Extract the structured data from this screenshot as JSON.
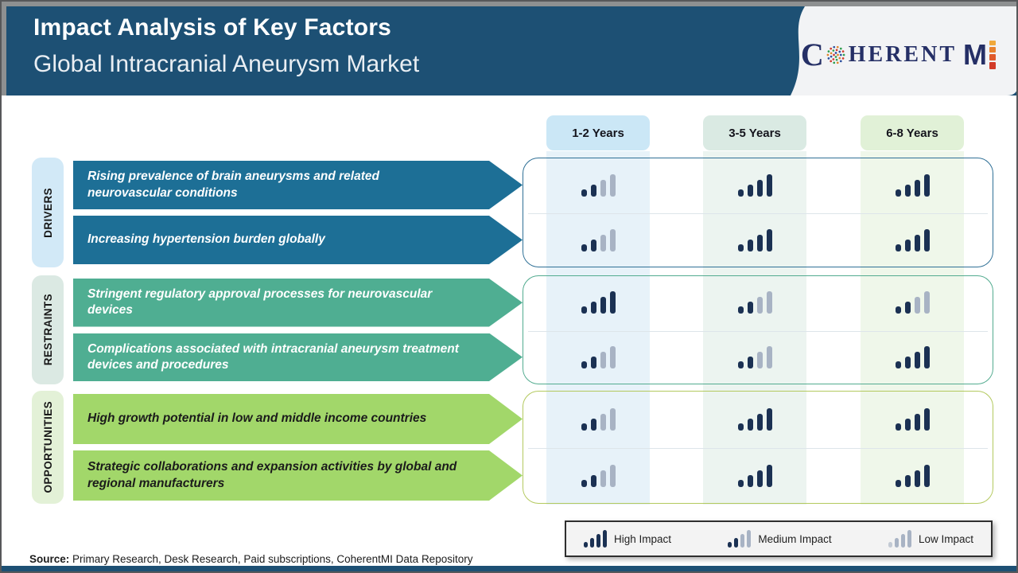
{
  "header": {
    "title": "Impact Analysis of Key Factors",
    "subtitle": "Global Intracranial Aneurysm Market",
    "logo": {
      "c": "C",
      "herent": "HERENT",
      "m": "M"
    }
  },
  "columns": [
    {
      "label": "1-2 Years",
      "tab_bg": "#cbe7f6",
      "band_bg": "#e7f2f9"
    },
    {
      "label": "3-5 Years",
      "tab_bg": "#daeae3",
      "band_bg": "#ecf4f0"
    },
    {
      "label": "6-8 Years",
      "tab_bg": "#e1f1d7",
      "band_bg": "#eff7ea"
    }
  ],
  "groups": [
    {
      "key": "drivers",
      "label": "DRIVERS",
      "rows": [
        {
          "text": "Rising prevalence of brain aneurysms and related neurovascular conditions",
          "impacts": [
            "medium",
            "high",
            "high"
          ]
        },
        {
          "text": "Increasing hypertension burden globally",
          "impacts": [
            "medium",
            "high",
            "high"
          ]
        }
      ]
    },
    {
      "key": "restraints",
      "label": "RESTRAINTS",
      "rows": [
        {
          "text": "Stringent regulatory approval processes for neurovascular devices",
          "impacts": [
            "high",
            "medium",
            "medium"
          ]
        },
        {
          "text": "Complications associated with intracranial aneurysm treatment devices and procedures",
          "impacts": [
            "medium",
            "medium",
            "high"
          ]
        }
      ]
    },
    {
      "key": "opportunities",
      "label": "OPPORTUNITIES",
      "rows": [
        {
          "text": "High growth potential in low and middle income countries",
          "impacts": [
            "medium",
            "high",
            "high"
          ]
        },
        {
          "text": "Strategic collaborations and expansion activities by global and regional manufacturers",
          "impacts": [
            "medium",
            "high",
            "high"
          ]
        }
      ]
    }
  ],
  "legend": [
    {
      "level": "high",
      "label": "High Impact"
    },
    {
      "level": "medium",
      "label": "Medium Impact"
    },
    {
      "level": "low",
      "label": "Low Impact"
    }
  ],
  "source": {
    "prefix": "Source:",
    "text": " Primary Research, Desk Research, Paid subscriptions, CoherentMI Data Repository"
  },
  "palette": {
    "header_bg": "#1d5074",
    "drivers": {
      "arrow": "#1d6f96",
      "text": "#ffffff",
      "label_bg": "#d2e9f7",
      "box_border": "#2f7096"
    },
    "restraints": {
      "arrow": "#4fae92",
      "text": "#ffffff",
      "label_bg": "#dbe9e3",
      "box_border": "#52ab8f"
    },
    "opportunities": {
      "arrow": "#a2d76a",
      "text": "#1b1b1b",
      "label_bg": "#e3f1d7",
      "box_border": "#b3c95e"
    },
    "impact_dark": "#1b3153",
    "impact_gray": "#a8b3c4",
    "impact_gray_light": "#c3cad4",
    "logo_navy": "#252f66",
    "logo_bar_colors": [
      "#f0a93c",
      "#e8822f",
      "#e05a2b",
      "#d23b28"
    ],
    "globe_dot_colors": [
      "#2f9e4f",
      "#cf3c30",
      "#2c4f9e",
      "#e0852e"
    ]
  }
}
